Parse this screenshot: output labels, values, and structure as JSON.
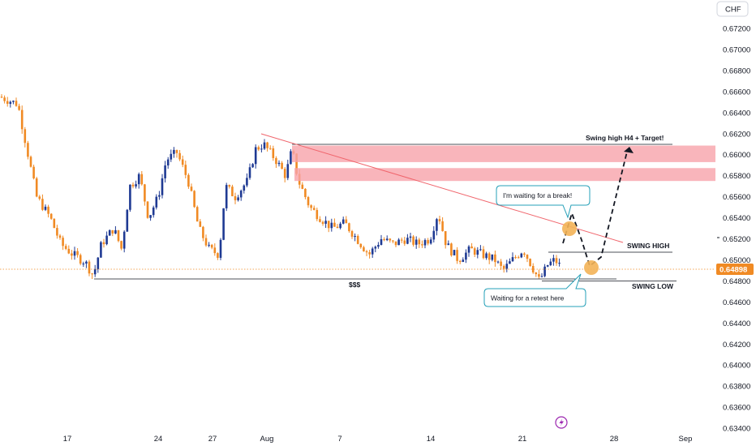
{
  "currency_label": "CHF",
  "current_price": "0.64898",
  "colors": {
    "up": "#1f3a93",
    "down": "#f08a24",
    "zone": "#f7a3aa",
    "trendline": "#f0656c",
    "price_line": "#f08a24",
    "callout_border": "#26a0b8",
    "marker": "#f3b257"
  },
  "chart_data": {
    "type": "candlestick",
    "ylim": [
      0.6339,
      0.673
    ],
    "y_ticks": [
      "0.67200",
      "0.67000",
      "0.66800",
      "0.66600",
      "0.66400",
      "0.66200",
      "0.66000",
      "0.65800",
      "0.65600",
      "0.65400",
      "0.65200",
      "0.65000",
      "0.64800",
      "0.64600",
      "0.64400",
      "0.64200",
      "0.64000",
      "0.63800",
      "0.63600",
      "0.63400"
    ],
    "x_ticks": [
      "17",
      "24",
      "27",
      "Aug",
      "7",
      "14",
      "21",
      "28",
      "Sep"
    ],
    "zones": [
      {
        "from": 0.6601,
        "to": 0.6609
      },
      {
        "from": 0.65765,
        "to": 0.6588
      }
    ],
    "annotations": {
      "target": "Swing high H4 + Target!",
      "swing_high": "SWING HIGH",
      "swing_low": "SWING LOW",
      "liquidity": "$$$",
      "callout_break": "I'm waiting for a break!",
      "callout_retest": "Waiting for a retest here"
    },
    "levels": {
      "swing_high": 0.6506,
      "swing_low": 0.64777,
      "liquidity_low": 0.64815,
      "target_top": 0.6612
    }
  }
}
